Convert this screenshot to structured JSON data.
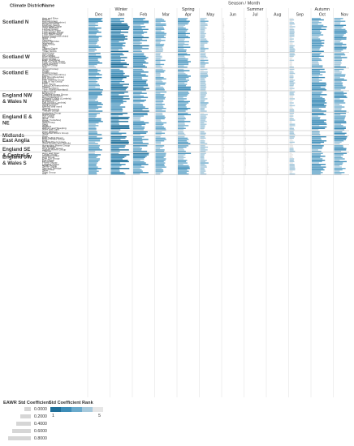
{
  "chart_data": {
    "type": "bar",
    "orientation": "horizontal",
    "title": "Season / Month",
    "row_header_left": "Climate District",
    "row_header_right": "Name",
    "seasons": [
      {
        "name": "Winter",
        "months": [
          "Dec",
          "Jan",
          "Feb"
        ]
      },
      {
        "name": "Spring",
        "months": [
          "Mar",
          "Apr",
          "May"
        ]
      },
      {
        "name": "Summer",
        "months": [
          "Jun",
          "Jul",
          "Aug"
        ]
      },
      {
        "name": "Autumn",
        "months": [
          "Sep",
          "Oct",
          "Nov"
        ]
      }
    ],
    "months": [
      "Dec",
      "Jan",
      "Feb",
      "Mar",
      "Apr",
      "May",
      "Jun",
      "Jul",
      "Aug",
      "Sep",
      "Oct",
      "Nov"
    ],
    "districts": [
      {
        "name": "Scotland N",
        "rows": [
          "Awe and Etive",
          "Beauly",
          "Carron Group",
          "Dee (Aberdeenshire)",
          "Deveron Group",
          "Findhorn Group",
          "Helmsdale Group",
          "Inner Hebrides",
          "Laxford Group",
          "Loch Alsh Group",
          "Loch Linnhe Group",
          "Loch Maree group",
          "Loch Shiel Group",
          "Lochy (Inverness-shire)",
          "Naver group",
          "Ness",
          "Orkneys",
          "Outer Hebrides",
          "Shetlands",
          "Shin Group",
          "Spey",
          "Tay",
          "Thurso Group",
          "Wick Group",
          "Ythan Group"
        ]
      },
      {
        "name": "Scotland W",
        "rows": [
          "Add Group",
          "Ayr Group",
          "Cree Group",
          "Dee (Galloway)",
          "Doon Group",
          "Eden (Cumbria)",
          "Firth of Clyde Group",
          "Forth of Clyde Group",
          "Irvine and Ayr",
          "Kintyre Group",
          "Nith"
        ]
      },
      {
        "name": "Scotland E",
        "rows": [
          "Almond Group",
          "Annan",
          "Clyde",
          "Cowpit Group",
          "Don (Aberdeenshire)",
          "Earn",
          "Esk (Dumfriesshire)",
          "Esk Group",
          "Firth of Forth Group",
          "Firth of Tay Group",
          "Forth",
          "Fyne Group",
          "Leven (Dunbartonshire)",
          "Tweed",
          "Tyne (Lothian)",
          "Tyne (Northumberland)"
        ]
      },
      {
        "name": "England NW & Wales N",
        "rows": [
          "Fiffon Group",
          "Brighteny",
          "Cheshire Rivers Group",
          "Conwy and Clwyd",
          "Dee (Cheshire)",
          "Derwent Group (Cumbria)",
          "Douglas Group",
          "Dyfi Group",
          "Esk Group (Cumbria)",
          "Glaslyn Group",
          "Irwell Group",
          "Mersey and Irwell",
          "Severn",
          "Wye (Hereford)",
          "Ystwyth Group"
        ]
      },
      {
        "name": "England E & NE",
        "rows": [
          "Ancholme Group",
          "Great Ouse",
          "Hull Group",
          "Isle of Man",
          "Nene",
          "Ouse (Yorkshire)",
          "Ribble",
          "Tees Group",
          "Trent",
          "Wear",
          "Welland",
          "Witham and Steeping",
          "Wyre and Lune"
        ]
      },
      {
        "name": "Midlands",
        "rows": [
          "Avon (Bristol)",
          "Somerset Rivers Group",
          "Stour"
        ]
      },
      {
        "name": "East Anglia",
        "rows": [
          "Blyth",
          "East Suffolk Rivers",
          "Essex Rivers Group",
          "Kent",
          "Norfolk Rivers Group",
          "Stour (Essex and Suffolk)"
        ]
      },
      {
        "name": "England SE & Central S",
        "rows": [
          "Hampshire Rivers Group",
          "Isle of Wight",
          "Kent Rivers Group",
          "Sussex Rivers Group",
          "Thames"
        ]
      },
      {
        "name": "England SW & Wales S",
        "rows": [
          "Avon and Stour",
          "Camel Group",
          "Cleddau Group",
          "Dart Group",
          "East Lyn Group",
          "Exe Group",
          "Fal Group",
          "Frome Group",
          "Loughor Group",
          "Neath Group",
          "Tamar Group",
          "Taw and Torridge",
          "Teifi Group",
          "Tawe",
          "Towy Group",
          "Usk"
        ]
      }
    ],
    "legend_size": {
      "title": "EAWR Std Coefficient",
      "values": [
        "0.0000",
        "0.2000",
        "0.4000",
        "0.6000",
        "0.8000"
      ]
    },
    "legend_color": {
      "title": "Std Coefficient Rank",
      "min_label": "1",
      "max_label": "5",
      "colors": [
        "#1f6f99",
        "#3d8db8",
        "#6aaacc",
        "#a7c9dc",
        "#e6e6e6"
      ]
    },
    "xlim": [
      0,
      0.8
    ],
    "grid": true,
    "legend_position": "bottom-left"
  }
}
